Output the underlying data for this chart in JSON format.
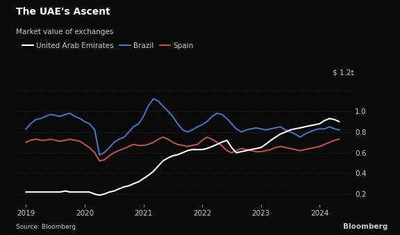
{
  "title": "The UAE's Ascent",
  "subtitle": "Market value of exchanges",
  "source": "Source: Bloomberg",
  "watermark": "Bloomberg",
  "background_color": "#0a0a0a",
  "text_color": "#cccccc",
  "grid_color": "#333333",
  "ylabel_text": "$ 1.2t",
  "yticks": [
    0.2,
    0.4,
    0.6,
    0.8,
    1.0
  ],
  "ylim": [
    0.1,
    1.28
  ],
  "xlim_start": 2018.83,
  "xlim_end": 2024.55,
  "xticks": [
    2019,
    2020,
    2021,
    2022,
    2023,
    2024
  ],
  "legend_labels": [
    "United Arab Emirates",
    "Brazil",
    "Spain"
  ],
  "legend_colors": [
    "#ffffff",
    "#4472c4",
    "#c0504d"
  ],
  "uae": {
    "color": "#ffffff",
    "x": [
      2019.0,
      2019.08,
      2019.17,
      2019.25,
      2019.33,
      2019.42,
      2019.5,
      2019.58,
      2019.67,
      2019.75,
      2019.83,
      2019.92,
      2020.0,
      2020.08,
      2020.17,
      2020.25,
      2020.33,
      2020.42,
      2020.5,
      2020.58,
      2020.67,
      2020.75,
      2020.83,
      2020.92,
      2021.0,
      2021.08,
      2021.17,
      2021.25,
      2021.33,
      2021.42,
      2021.5,
      2021.58,
      2021.67,
      2021.75,
      2021.83,
      2021.92,
      2022.0,
      2022.08,
      2022.17,
      2022.25,
      2022.33,
      2022.42,
      2022.5,
      2022.58,
      2022.67,
      2022.75,
      2022.83,
      2022.92,
      2023.0,
      2023.08,
      2023.17,
      2023.25,
      2023.33,
      2023.42,
      2023.5,
      2023.58,
      2023.67,
      2023.75,
      2023.83,
      2023.92,
      2024.0,
      2024.08,
      2024.17,
      2024.25,
      2024.33
    ],
    "y": [
      0.22,
      0.22,
      0.22,
      0.22,
      0.22,
      0.22,
      0.22,
      0.22,
      0.23,
      0.22,
      0.22,
      0.22,
      0.22,
      0.22,
      0.2,
      0.19,
      0.2,
      0.22,
      0.23,
      0.25,
      0.27,
      0.28,
      0.3,
      0.32,
      0.35,
      0.38,
      0.42,
      0.47,
      0.52,
      0.55,
      0.57,
      0.58,
      0.6,
      0.62,
      0.63,
      0.63,
      0.63,
      0.64,
      0.66,
      0.68,
      0.7,
      0.72,
      0.65,
      0.6,
      0.61,
      0.62,
      0.63,
      0.64,
      0.65,
      0.68,
      0.72,
      0.75,
      0.78,
      0.8,
      0.82,
      0.83,
      0.84,
      0.85,
      0.86,
      0.87,
      0.88,
      0.91,
      0.93,
      0.92,
      0.9
    ]
  },
  "brazil": {
    "color": "#4472c4",
    "x": [
      2019.0,
      2019.08,
      2019.17,
      2019.25,
      2019.33,
      2019.42,
      2019.5,
      2019.58,
      2019.67,
      2019.75,
      2019.83,
      2019.92,
      2020.0,
      2020.08,
      2020.17,
      2020.25,
      2020.33,
      2020.42,
      2020.5,
      2020.58,
      2020.67,
      2020.75,
      2020.83,
      2020.92,
      2021.0,
      2021.08,
      2021.17,
      2021.25,
      2021.33,
      2021.42,
      2021.5,
      2021.58,
      2021.67,
      2021.75,
      2021.83,
      2021.92,
      2022.0,
      2022.08,
      2022.17,
      2022.25,
      2022.33,
      2022.42,
      2022.5,
      2022.58,
      2022.67,
      2022.75,
      2022.83,
      2022.92,
      2023.0,
      2023.08,
      2023.17,
      2023.25,
      2023.33,
      2023.42,
      2023.5,
      2023.58,
      2023.67,
      2023.75,
      2023.83,
      2023.92,
      2024.0,
      2024.08,
      2024.17,
      2024.25,
      2024.33
    ],
    "y": [
      0.83,
      0.88,
      0.92,
      0.93,
      0.95,
      0.97,
      0.96,
      0.95,
      0.97,
      0.98,
      0.95,
      0.93,
      0.9,
      0.88,
      0.82,
      0.58,
      0.6,
      0.65,
      0.7,
      0.73,
      0.75,
      0.8,
      0.85,
      0.88,
      0.95,
      1.05,
      1.12,
      1.1,
      1.05,
      1.0,
      0.95,
      0.88,
      0.82,
      0.8,
      0.82,
      0.85,
      0.87,
      0.9,
      0.95,
      0.98,
      0.97,
      0.93,
      0.88,
      0.83,
      0.8,
      0.82,
      0.83,
      0.84,
      0.83,
      0.82,
      0.83,
      0.84,
      0.85,
      0.82,
      0.8,
      0.78,
      0.75,
      0.78,
      0.8,
      0.82,
      0.83,
      0.83,
      0.85,
      0.83,
      0.82
    ]
  },
  "spain": {
    "color": "#c0504d",
    "x": [
      2019.0,
      2019.08,
      2019.17,
      2019.25,
      2019.33,
      2019.42,
      2019.5,
      2019.58,
      2019.67,
      2019.75,
      2019.83,
      2019.92,
      2020.0,
      2020.08,
      2020.17,
      2020.25,
      2020.33,
      2020.42,
      2020.5,
      2020.58,
      2020.67,
      2020.75,
      2020.83,
      2020.92,
      2021.0,
      2021.08,
      2021.17,
      2021.25,
      2021.33,
      2021.42,
      2021.5,
      2021.58,
      2021.67,
      2021.75,
      2021.83,
      2021.92,
      2022.0,
      2022.08,
      2022.17,
      2022.25,
      2022.33,
      2022.42,
      2022.5,
      2022.58,
      2022.67,
      2022.75,
      2022.83,
      2022.92,
      2023.0,
      2023.08,
      2023.17,
      2023.25,
      2023.33,
      2023.42,
      2023.5,
      2023.58,
      2023.67,
      2023.75,
      2023.83,
      2023.92,
      2024.0,
      2024.08,
      2024.17,
      2024.25,
      2024.33
    ],
    "y": [
      0.7,
      0.72,
      0.73,
      0.72,
      0.72,
      0.73,
      0.72,
      0.71,
      0.72,
      0.73,
      0.72,
      0.71,
      0.68,
      0.65,
      0.6,
      0.52,
      0.53,
      0.57,
      0.6,
      0.62,
      0.64,
      0.66,
      0.68,
      0.67,
      0.67,
      0.68,
      0.7,
      0.73,
      0.75,
      0.73,
      0.7,
      0.68,
      0.67,
      0.66,
      0.67,
      0.68,
      0.72,
      0.75,
      0.73,
      0.7,
      0.67,
      0.62,
      0.6,
      0.62,
      0.64,
      0.63,
      0.62,
      0.61,
      0.61,
      0.62,
      0.63,
      0.65,
      0.66,
      0.65,
      0.64,
      0.63,
      0.62,
      0.63,
      0.64,
      0.65,
      0.66,
      0.68,
      0.7,
      0.72,
      0.73
    ]
  }
}
